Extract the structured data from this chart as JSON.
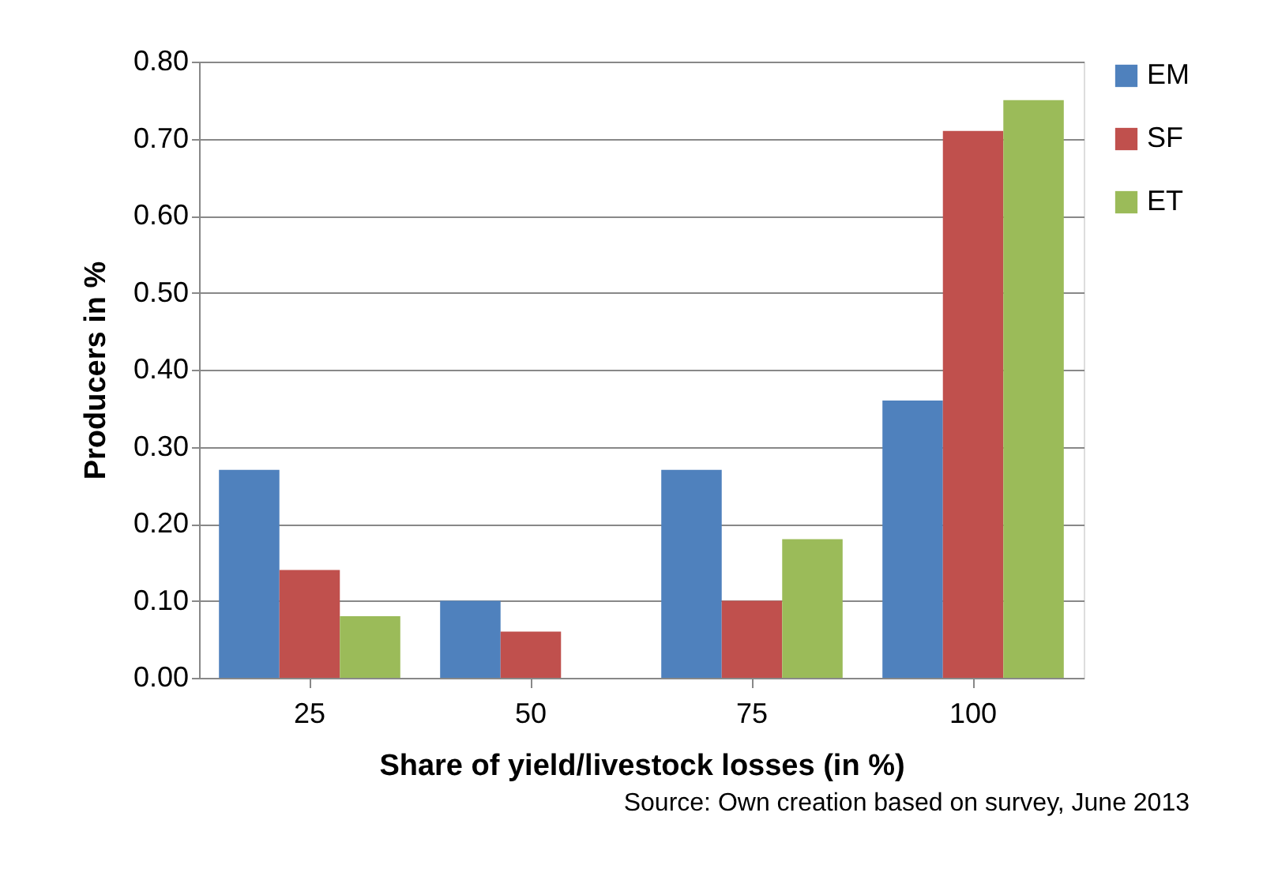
{
  "chart_data": {
    "type": "bar",
    "xlabel": "Share of yield/livestock losses (in %)",
    "ylabel": "Producers in %",
    "categories": [
      "25",
      "50",
      "75",
      "100"
    ],
    "series": [
      {
        "name": "EM",
        "color": "#4f81bd",
        "values": [
          0.27,
          0.1,
          0.27,
          0.36
        ]
      },
      {
        "name": "SF",
        "color": "#c0504d",
        "values": [
          0.14,
          0.06,
          0.1,
          0.71
        ]
      },
      {
        "name": "ET",
        "color": "#9bbb59",
        "values": [
          0.08,
          0,
          0.18,
          0.75
        ]
      }
    ],
    "ylim": [
      0,
      0.8
    ],
    "yticks": [
      {
        "value": 0,
        "label": "0.00"
      },
      {
        "value": 0.1,
        "label": "0.10"
      },
      {
        "value": 0.2,
        "label": "0.20"
      },
      {
        "value": 0.3,
        "label": "0.30"
      },
      {
        "value": 0.4,
        "label": "0.40"
      },
      {
        "value": 0.5,
        "label": "0.50"
      },
      {
        "value": 0.6,
        "label": "0.60"
      },
      {
        "value": 0.7,
        "label": "0.70"
      },
      {
        "value": 0.8,
        "label": "0.80"
      }
    ],
    "grid": "y",
    "legend": "right",
    "annotations": [
      "Source: Own creation based on survey, June 2013"
    ]
  }
}
